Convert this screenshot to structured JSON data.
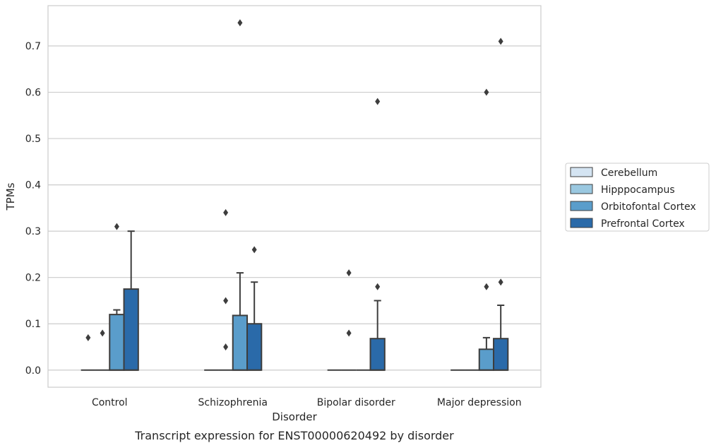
{
  "caption": "Transcript expression for ENST00000620492 by disorder",
  "chart_data": {
    "type": "box",
    "xlabel": "Disorder",
    "ylabel": "TPMs",
    "ylim": [
      -0.037,
      0.787
    ],
    "yticks": [
      "0.0",
      "0.1",
      "0.2",
      "0.3",
      "0.4",
      "0.5",
      "0.6",
      "0.7"
    ],
    "ytick_values": [
      0.0,
      0.1,
      0.2,
      0.3,
      0.4,
      0.5,
      0.6,
      0.7
    ],
    "grid": "horizontal",
    "legend_position": "right",
    "categories": [
      "Control",
      "Schizophrenia",
      "Bipolar disorder",
      "Major depression"
    ],
    "series": [
      {
        "name": "Cerebellum",
        "color": "#d4e4f2",
        "boxes": [
          {
            "q1": 0,
            "median": 0,
            "q3": 0,
            "whisker_low": 0,
            "whisker_high": 0,
            "outliers": [
              0.07
            ]
          },
          {
            "q1": 0,
            "median": 0,
            "q3": 0,
            "whisker_low": 0,
            "whisker_high": 0,
            "outliers": []
          },
          {
            "q1": 0,
            "median": 0,
            "q3": 0,
            "whisker_low": 0,
            "whisker_high": 0,
            "outliers": []
          },
          {
            "q1": 0,
            "median": 0,
            "q3": 0,
            "whisker_low": 0,
            "whisker_high": 0,
            "outliers": []
          }
        ]
      },
      {
        "name": "Hipppocampus",
        "color": "#9ac8e0",
        "boxes": [
          {
            "q1": 0,
            "median": 0,
            "q3": 0,
            "whisker_low": 0,
            "whisker_high": 0,
            "outliers": [
              0.08
            ]
          },
          {
            "q1": 0,
            "median": 0,
            "q3": 0,
            "whisker_low": 0,
            "whisker_high": 0,
            "outliers": [
              0.05,
              0.15,
              0.34
            ]
          },
          {
            "q1": 0,
            "median": 0,
            "q3": 0,
            "whisker_low": 0,
            "whisker_high": 0,
            "outliers": [
              0.08,
              0.21
            ]
          },
          {
            "q1": 0,
            "median": 0,
            "q3": 0,
            "whisker_low": 0,
            "whisker_high": 0,
            "outliers": []
          }
        ]
      },
      {
        "name": "Orbitofontal Cortex",
        "color": "#5a9dcb",
        "boxes": [
          {
            "q1": 0,
            "median": 0,
            "q3": 0.12,
            "whisker_low": 0,
            "whisker_high": 0.13,
            "outliers": [
              0.31
            ]
          },
          {
            "q1": 0,
            "median": 0,
            "q3": 0.118,
            "whisker_low": 0,
            "whisker_high": 0.21,
            "outliers": [
              0.75
            ]
          },
          {
            "q1": 0,
            "median": 0,
            "q3": 0,
            "whisker_low": 0,
            "whisker_high": 0,
            "outliers": []
          },
          {
            "q1": 0,
            "median": 0,
            "q3": 0.045,
            "whisker_low": 0,
            "whisker_high": 0.07,
            "outliers": [
              0.18,
              0.6
            ]
          }
        ]
      },
      {
        "name": "Prefrontal Cortex",
        "color": "#2a6aa9",
        "boxes": [
          {
            "q1": 0,
            "median": 0,
            "q3": 0.175,
            "whisker_low": 0,
            "whisker_high": 0.3,
            "outliers": []
          },
          {
            "q1": 0,
            "median": 0,
            "q3": 0.1,
            "whisker_low": 0,
            "whisker_high": 0.19,
            "outliers": [
              0.26
            ]
          },
          {
            "q1": 0,
            "median": 0,
            "q3": 0.068,
            "whisker_low": 0,
            "whisker_high": 0.15,
            "outliers": [
              0.18,
              0.58
            ]
          },
          {
            "q1": 0,
            "median": 0,
            "q3": 0.068,
            "whisker_low": 0,
            "whisker_high": 0.14,
            "outliers": [
              0.19,
              0.71
            ]
          }
        ]
      }
    ]
  }
}
